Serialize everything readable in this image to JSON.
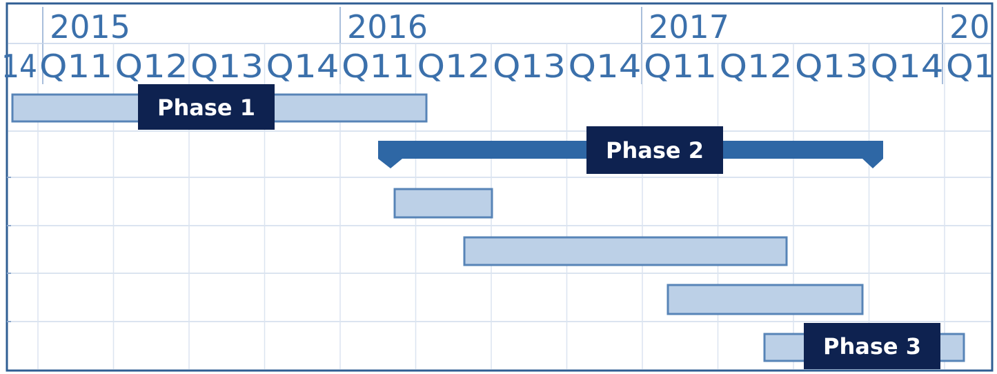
{
  "header": {
    "years": [
      "2015",
      "2016",
      "2017",
      "20"
    ],
    "quarters": [
      "14",
      "Q11",
      "Q12",
      "Q13",
      "Q14",
      "Q11",
      "Q12",
      "Q13",
      "Q14",
      "Q11",
      "Q12",
      "Q13",
      "Q14",
      "Q1"
    ]
  },
  "phases": [
    "Phase 1",
    "Phase 2",
    "Phase 3"
  ]
}
